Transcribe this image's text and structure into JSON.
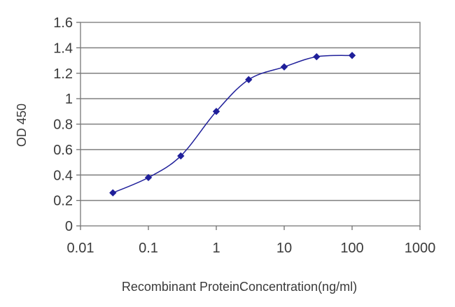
{
  "chart_data": {
    "type": "line",
    "title": "",
    "xlabel": "Recombinant ProteinConcentration(ng/ml)",
    "ylabel": "OD 450",
    "x_scale": "log",
    "xlim": [
      0.01,
      1000
    ],
    "ylim": [
      0,
      1.6
    ],
    "x_ticks": [
      "0.01",
      "0.1",
      "1",
      "10",
      "100",
      "1000"
    ],
    "y_ticks": [
      "0",
      "0.2",
      "0.4",
      "0.6",
      "0.8",
      "1",
      "1.2",
      "1.4",
      "1.6"
    ],
    "grid": "horizontal",
    "legend": "none",
    "series": [
      {
        "color": "#1f1f9a",
        "marker": "diamond",
        "x": [
          0.03,
          0.1,
          0.3,
          1,
          3,
          10,
          30,
          100
        ],
        "y": [
          0.26,
          0.38,
          0.55,
          0.9,
          1.15,
          1.25,
          1.33,
          1.34
        ]
      }
    ]
  }
}
